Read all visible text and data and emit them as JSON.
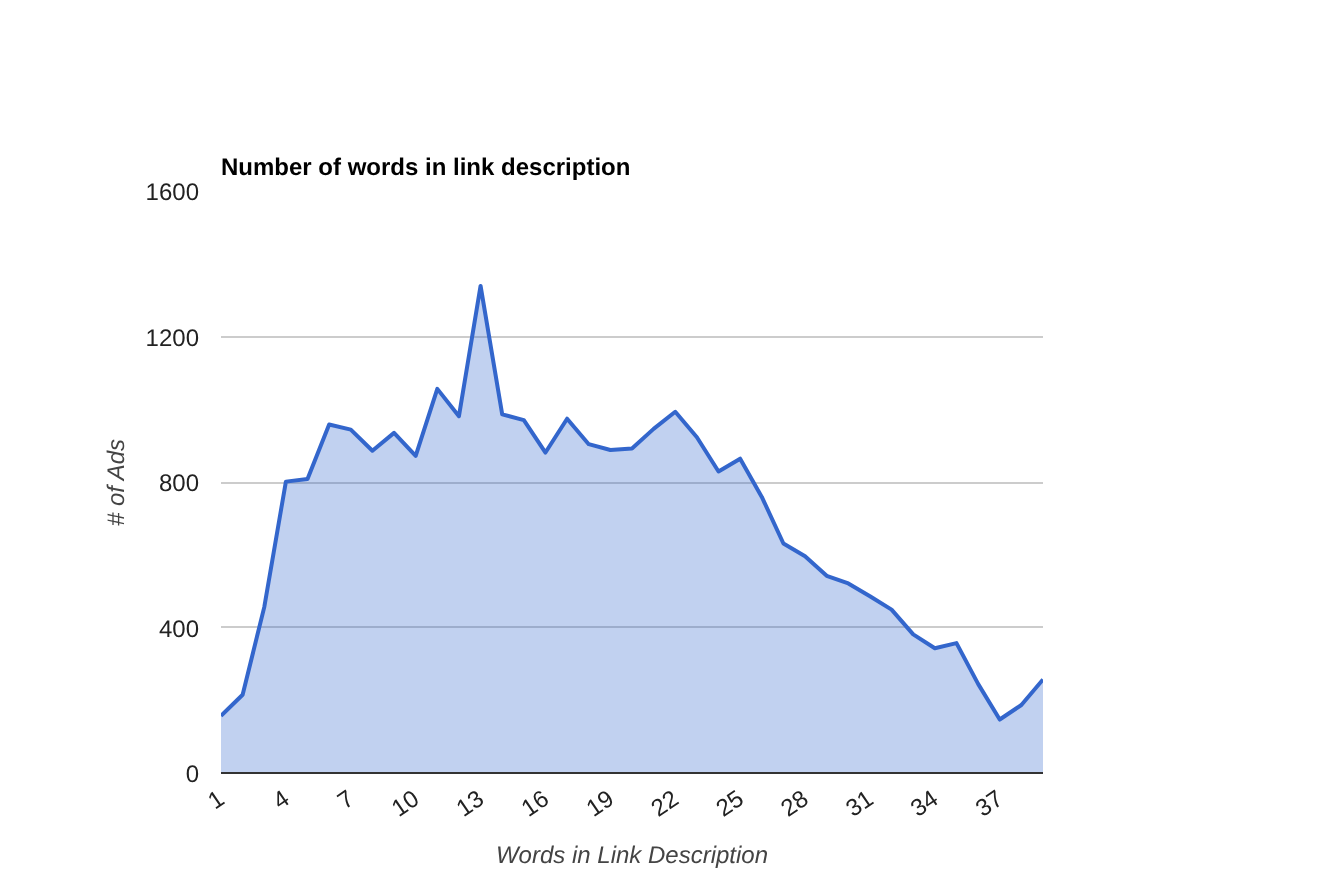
{
  "chart_data": {
    "type": "area",
    "title": "Number of words in link description",
    "xlabel": "Words in Link Description",
    "ylabel": "# of Ads",
    "x": [
      1,
      2,
      3,
      4,
      5,
      6,
      7,
      8,
      9,
      10,
      11,
      12,
      13,
      14,
      15,
      16,
      17,
      18,
      19,
      20,
      21,
      22,
      23,
      24,
      25,
      26,
      27,
      28,
      29,
      30,
      31,
      32,
      33,
      34,
      35,
      36,
      37,
      38,
      39
    ],
    "series": [
      {
        "color": "#3366cc",
        "values": [
          157,
          215,
          456,
          801,
          808,
          958,
          944,
          886,
          935,
          872,
          1056,
          981,
          1339,
          986,
          970,
          881,
          974,
          904,
          888,
          892,
          946,
          993,
          923,
          829,
          864,
          759,
          631,
          596,
          542,
          521,
          486,
          449,
          381,
          343,
          357,
          245,
          147,
          187,
          257
        ]
      }
    ],
    "xlim": [
      1,
      39
    ],
    "xticks": [
      1,
      4,
      7,
      10,
      13,
      16,
      19,
      22,
      25,
      28,
      31,
      34,
      37
    ],
    "ylim": [
      0,
      1600
    ],
    "yticks": [
      0,
      400,
      800,
      1200,
      1600
    ],
    "grid": "y"
  }
}
